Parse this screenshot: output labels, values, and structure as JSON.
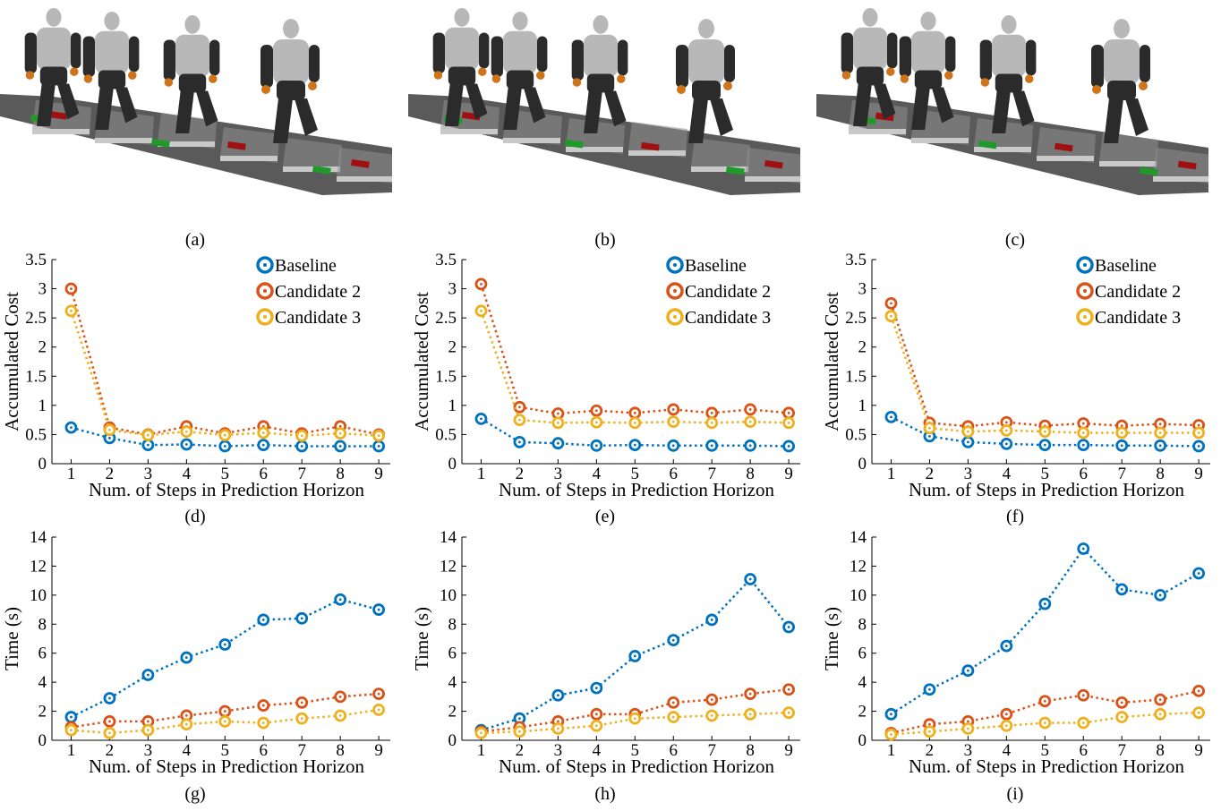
{
  "captions": {
    "a": "(a)",
    "b": "(b)",
    "c": "(c)",
    "d": "(d)",
    "e": "(e)",
    "f": "(f)",
    "g": "(g)",
    "h": "(h)",
    "i": "(i)"
  },
  "colors": {
    "baseline": "#0072BD",
    "candidate2": "#D95319",
    "candidate3": "#EDB120",
    "floor": "#5a5a5a",
    "tile_top": "#8f8f8f",
    "tile_side": "#c9c9c9",
    "robot_dark": "#2b2b2b",
    "robot_light": "#b8b8b8",
    "accent_orange": "#d0741a",
    "marker_green": "#1f9a2a",
    "marker_red": "#a01010"
  },
  "images": [
    {
      "name": "simulation-scene-a",
      "description_icon": "humanoid-robot-walking-icon"
    },
    {
      "name": "simulation-scene-b",
      "description_icon": "humanoid-robot-walking-icon"
    },
    {
      "name": "simulation-scene-c",
      "description_icon": "humanoid-robot-walking-icon"
    }
  ],
  "chart_data": [
    {
      "id": "d",
      "type": "line",
      "xlabel": "Num. of Steps in Prediction Horizon",
      "ylabel": "Accumulated Cost",
      "x": [
        1,
        2,
        3,
        4,
        5,
        6,
        7,
        8,
        9
      ],
      "xlim": [
        0.5,
        9.3
      ],
      "ylim": [
        0,
        3.5
      ],
      "yticks": [
        0,
        0.5,
        1,
        1.5,
        2,
        2.5,
        3,
        3.5
      ],
      "ytick_labels": [
        "0",
        "0.5",
        "1",
        "1.5",
        "2",
        "2.5",
        "3",
        "3.5"
      ],
      "legend": true,
      "legend_position": "top-right",
      "series": [
        {
          "name": "Baseline",
          "values": [
            0.62,
            0.44,
            0.32,
            0.33,
            0.3,
            0.32,
            0.3,
            0.3,
            0.3
          ]
        },
        {
          "name": "Candidate 2",
          "values": [
            3.0,
            0.62,
            0.5,
            0.64,
            0.52,
            0.64,
            0.52,
            0.64,
            0.5
          ]
        },
        {
          "name": "Candidate 3",
          "values": [
            2.62,
            0.58,
            0.49,
            0.55,
            0.49,
            0.53,
            0.48,
            0.52,
            0.48
          ]
        }
      ]
    },
    {
      "id": "e",
      "type": "line",
      "xlabel": "Num. of Steps in Prediction Horizon",
      "ylabel": "Accumulated Cost",
      "x": [
        1,
        2,
        3,
        4,
        5,
        6,
        7,
        8,
        9
      ],
      "xlim": [
        0.5,
        9.3
      ],
      "ylim": [
        0,
        3.5
      ],
      "yticks": [
        0,
        0.5,
        1,
        1.5,
        2,
        2.5,
        3,
        3.5
      ],
      "ytick_labels": [
        "0",
        "0.5",
        "1",
        "1.5",
        "2",
        "2.5",
        "3",
        "3.5"
      ],
      "legend": true,
      "legend_position": "top-right",
      "series": [
        {
          "name": "Baseline",
          "values": [
            0.77,
            0.37,
            0.35,
            0.31,
            0.32,
            0.31,
            0.31,
            0.31,
            0.3
          ]
        },
        {
          "name": "Candidate 2",
          "values": [
            3.08,
            0.97,
            0.86,
            0.91,
            0.87,
            0.93,
            0.87,
            0.93,
            0.87
          ]
        },
        {
          "name": "Candidate 3",
          "values": [
            2.62,
            0.75,
            0.7,
            0.71,
            0.7,
            0.72,
            0.7,
            0.72,
            0.7
          ]
        }
      ]
    },
    {
      "id": "f",
      "type": "line",
      "xlabel": "Num. of Steps in Prediction Horizon",
      "ylabel": "Accumulated Cost",
      "x": [
        1,
        2,
        3,
        4,
        5,
        6,
        7,
        8,
        9
      ],
      "xlim": [
        0.5,
        9.3
      ],
      "ylim": [
        0,
        3.5
      ],
      "yticks": [
        0,
        0.5,
        1,
        1.5,
        2,
        2.5,
        3,
        3.5
      ],
      "ytick_labels": [
        "0",
        "0.5",
        "1",
        "1.5",
        "2",
        "2.5",
        "3",
        "3.5"
      ],
      "legend": true,
      "legend_position": "top-right",
      "series": [
        {
          "name": "Baseline",
          "values": [
            0.8,
            0.47,
            0.37,
            0.34,
            0.32,
            0.32,
            0.31,
            0.31,
            0.3
          ]
        },
        {
          "name": "Candidate 2",
          "values": [
            2.75,
            0.7,
            0.64,
            0.71,
            0.65,
            0.69,
            0.65,
            0.68,
            0.66
          ]
        },
        {
          "name": "Candidate 3",
          "values": [
            2.53,
            0.61,
            0.55,
            0.57,
            0.55,
            0.53,
            0.53,
            0.53,
            0.53
          ]
        }
      ]
    },
    {
      "id": "g",
      "type": "line",
      "xlabel": "Num. of Steps in Prediction Horizon",
      "ylabel": "Time (s)",
      "x": [
        1,
        2,
        3,
        4,
        5,
        6,
        7,
        8,
        9
      ],
      "xlim": [
        0.5,
        9.3
      ],
      "ylim": [
        0,
        14
      ],
      "yticks": [
        0,
        2,
        4,
        6,
        8,
        10,
        12,
        14
      ],
      "ytick_labels": [
        "0",
        "2",
        "4",
        "6",
        "8",
        "10",
        "12",
        "14"
      ],
      "legend": false,
      "series": [
        {
          "name": "Baseline",
          "values": [
            1.6,
            2.9,
            4.5,
            5.7,
            6.6,
            8.3,
            8.4,
            9.7,
            9.0
          ]
        },
        {
          "name": "Candidate 2",
          "values": [
            0.9,
            1.3,
            1.3,
            1.7,
            2.0,
            2.4,
            2.6,
            3.0,
            3.2
          ]
        },
        {
          "name": "Candidate 3",
          "values": [
            0.7,
            0.5,
            0.7,
            1.1,
            1.3,
            1.2,
            1.5,
            1.7,
            2.1
          ]
        }
      ]
    },
    {
      "id": "h",
      "type": "line",
      "xlabel": "Num. of Steps in Prediction Horizon",
      "ylabel": "Time (s)",
      "x": [
        1,
        2,
        3,
        4,
        5,
        6,
        7,
        8,
        9
      ],
      "xlim": [
        0.5,
        9.3
      ],
      "ylim": [
        0,
        14
      ],
      "yticks": [
        0,
        2,
        4,
        6,
        8,
        10,
        12,
        14
      ],
      "ytick_labels": [
        "0",
        "2",
        "4",
        "6",
        "8",
        "10",
        "12",
        "14"
      ],
      "legend": false,
      "series": [
        {
          "name": "Baseline",
          "values": [
            0.7,
            1.5,
            3.1,
            3.6,
            5.8,
            6.9,
            8.3,
            11.1,
            7.8
          ]
        },
        {
          "name": "Candidate 2",
          "values": [
            0.6,
            0.9,
            1.3,
            1.8,
            1.8,
            2.6,
            2.8,
            3.2,
            3.5
          ]
        },
        {
          "name": "Candidate 3",
          "values": [
            0.5,
            0.6,
            0.8,
            1.0,
            1.5,
            1.6,
            1.7,
            1.8,
            1.9
          ]
        }
      ]
    },
    {
      "id": "i",
      "type": "line",
      "xlabel": "Num. of Steps in Prediction Horizon",
      "ylabel": "Time (s)",
      "x": [
        1,
        2,
        3,
        4,
        5,
        6,
        7,
        8,
        9
      ],
      "xlim": [
        0.5,
        9.3
      ],
      "ylim": [
        0,
        14
      ],
      "yticks": [
        0,
        2,
        4,
        6,
        8,
        10,
        12,
        14
      ],
      "ytick_labels": [
        "0",
        "2",
        "4",
        "6",
        "8",
        "10",
        "12",
        "14"
      ],
      "legend": false,
      "series": [
        {
          "name": "Baseline",
          "values": [
            1.8,
            3.5,
            4.8,
            6.5,
            9.4,
            13.2,
            10.4,
            10.0,
            11.5
          ]
        },
        {
          "name": "Candidate 2",
          "values": [
            0.5,
            1.1,
            1.3,
            1.8,
            2.7,
            3.1,
            2.6,
            2.8,
            3.4
          ]
        },
        {
          "name": "Candidate 3",
          "values": [
            0.4,
            0.6,
            0.8,
            1.0,
            1.2,
            1.2,
            1.6,
            1.8,
            1.9
          ]
        }
      ]
    }
  ]
}
